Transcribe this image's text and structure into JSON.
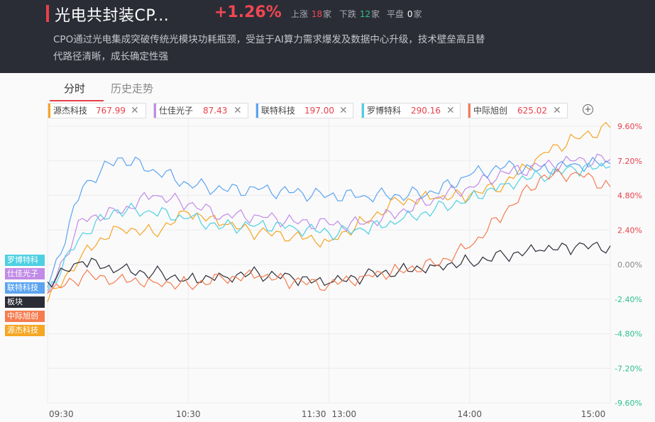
{
  "header": {
    "title": "光电共封装CP...",
    "change": "+1.26%",
    "up_label": "上涨",
    "up_count": "18",
    "up_unit": "家",
    "down_label": "下跌",
    "down_count": "12",
    "down_unit": "家",
    "flat_label": "平盘",
    "flat_count": "0",
    "flat_unit": "家",
    "description": "CPO通过光电集成突破传统光模块功耗瓶颈，受益于AI算力需求爆发及数据中心升级，技术壁垒高且替代路径清晰，成长确定性强"
  },
  "tabs": [
    {
      "label": "分时"
    },
    {
      "label": "历史走势"
    }
  ],
  "stocks": [
    {
      "name": "源杰科技",
      "price": "767.99",
      "color": "#f5a623"
    },
    {
      "name": "仕佳光子",
      "price": "87.43",
      "color": "#c18be6"
    },
    {
      "name": "联特科技",
      "price": "197.00",
      "color": "#5ba4ef"
    },
    {
      "name": "罗博特科",
      "price": "290.16",
      "color": "#4dd0e1"
    },
    {
      "name": "中际旭创",
      "price": "625.02",
      "color": "#f57c4f"
    }
  ],
  "add_icon": "plus-circle-icon",
  "close_icon": "close-icon",
  "legend": [
    {
      "label": "罗博特科",
      "color": "#4dd0e1"
    },
    {
      "label": "仕佳光子",
      "color": "#c18be6"
    },
    {
      "label": "联特科技",
      "color": "#5ba4ef"
    },
    {
      "label": "板块",
      "color": "#2b2d36"
    },
    {
      "label": "中际旭创",
      "color": "#f57c4f"
    },
    {
      "label": "源杰科技",
      "color": "#f5a623"
    }
  ],
  "chart_data": {
    "type": "line",
    "x_tick_labels": [
      "09:30",
      "10:30",
      "11:30",
      "13:00",
      "14:00",
      "15:00"
    ],
    "y_tick_labels": [
      "9.60%",
      "7.20%",
      "4.80%",
      "2.40%",
      "0.00%",
      "-2.40%",
      "-4.80%",
      "-7.20%",
      "-9.60%"
    ],
    "ylim": [
      -9.6,
      9.6
    ],
    "y_unit": "%",
    "x": [
      0,
      0.25,
      0.5,
      0.75,
      1.0,
      1.25,
      1.5,
      1.75,
      2.0,
      2.25,
      2.5,
      2.75,
      3.0,
      3.25,
      3.5,
      3.75,
      4.0
    ],
    "series": [
      {
        "name": "源杰科技",
        "color": "#f5a623",
        "values": [
          -2.6,
          0.8,
          2.6,
          2.2,
          3.6,
          2.8,
          2.2,
          2.0,
          1.6,
          3.0,
          4.4,
          4.6,
          4.8,
          5.6,
          7.6,
          8.8,
          9.5
        ]
      },
      {
        "name": "仕佳光子",
        "color": "#c18be6",
        "values": [
          -2.0,
          3.2,
          3.6,
          4.8,
          4.2,
          3.4,
          3.4,
          3.0,
          2.8,
          2.8,
          3.6,
          4.6,
          5.4,
          6.4,
          6.8,
          7.2,
          7.3
        ]
      },
      {
        "name": "联特科技",
        "color": "#5ba4ef",
        "values": [
          -1.6,
          5.4,
          7.4,
          6.6,
          5.6,
          5.2,
          5.2,
          5.0,
          4.8,
          4.8,
          4.8,
          5.0,
          6.2,
          6.8,
          6.6,
          7.0,
          7.0
        ]
      },
      {
        "name": "罗博特科",
        "color": "#4dd0e1",
        "values": [
          -1.8,
          2.2,
          3.8,
          3.6,
          3.2,
          2.6,
          2.8,
          2.6,
          2.2,
          2.4,
          3.0,
          3.8,
          4.6,
          5.6,
          6.2,
          6.6,
          6.8
        ]
      },
      {
        "name": "板块",
        "color": "#2b2d36",
        "values": [
          -1.2,
          0.2,
          -0.4,
          -0.6,
          -1.0,
          -0.8,
          -0.6,
          -1.0,
          -1.3,
          -0.8,
          -0.4,
          -0.1,
          0.2,
          0.6,
          1.0,
          1.2,
          1.3
        ]
      },
      {
        "name": "中际旭创",
        "color": "#f57c4f",
        "values": [
          -2.0,
          -0.8,
          -1.0,
          -1.2,
          -1.4,
          -1.0,
          -0.8,
          -1.2,
          -1.4,
          -0.8,
          -0.4,
          0.0,
          1.2,
          3.6,
          6.0,
          6.4,
          5.4
        ]
      }
    ]
  }
}
